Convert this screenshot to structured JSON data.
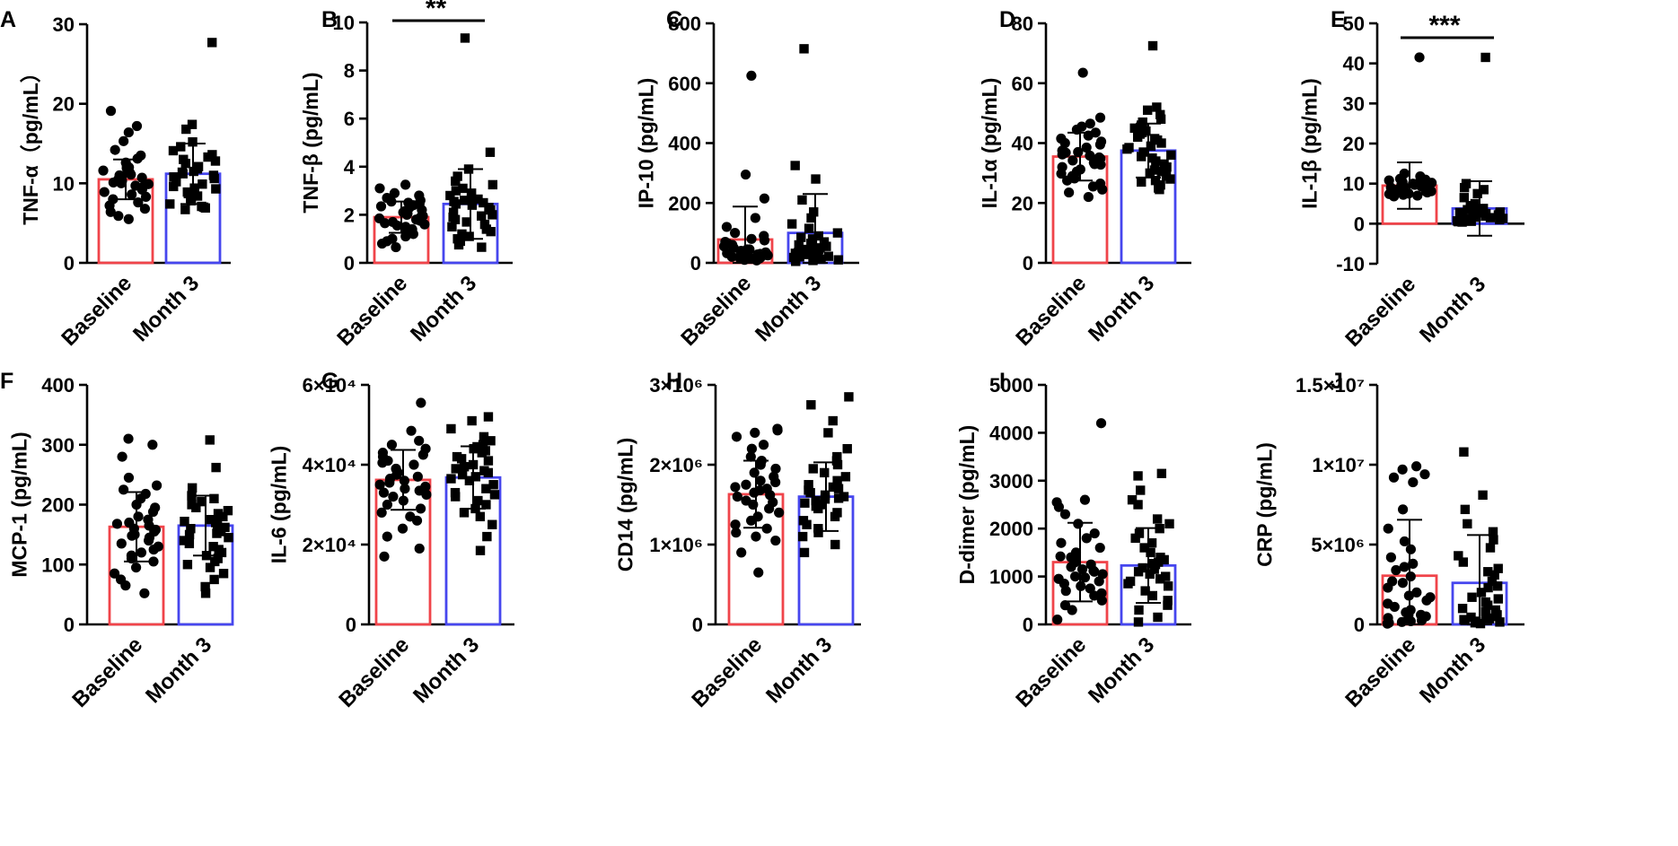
{
  "figure": {
    "colors": {
      "baseline": "#F0444A",
      "month3": "#4646EE",
      "ink": "#000000"
    }
  },
  "chart_data": [
    {
      "panel": "A",
      "type": "bar",
      "ylabel": "TNF-α（pg/mL）",
      "categories": [
        "Baseline",
        "Month 3"
      ],
      "ylim": [
        0,
        30
      ],
      "ticks": [
        0,
        10,
        20,
        30
      ],
      "tick_labels": [
        "0",
        "10",
        "20",
        "30"
      ],
      "means": [
        10.5,
        11.2
      ],
      "sd": [
        2.5,
        3.8
      ],
      "significance": null,
      "points": [
        [
          19.1,
          17.2,
          16.4,
          15.3,
          14.2,
          13.5,
          13.1,
          12.6,
          12.2,
          11.9,
          11.6,
          11.3,
          11.1,
          10.9,
          10.7,
          10.5,
          10.3,
          10.1,
          9.9,
          9.7,
          9.5,
          9.2,
          8.9,
          8.6,
          8.3,
          8.0,
          7.6,
          7.2,
          6.8,
          6.4,
          5.9,
          5.5,
          11.0,
          10.0,
          12.0
        ],
        [
          27.7,
          17.4,
          16.8,
          15.2,
          14.1,
          13.6,
          13.0,
          12.5,
          12.1,
          11.8,
          11.5,
          11.2,
          11.0,
          10.6,
          10.2,
          9.9,
          9.6,
          9.3,
          9.0,
          8.7,
          8.4,
          8.1,
          7.8,
          7.4,
          7.0,
          6.7,
          14.6,
          13.3,
          12.8,
          11.4,
          10.8,
          9.4,
          8.9,
          7.1,
          6.9
        ]
      ]
    },
    {
      "panel": "B",
      "type": "bar",
      "ylabel": "TNF-β (pg/mL)",
      "categories": [
        "Baseline",
        "Month 3"
      ],
      "ylim": [
        0,
        10
      ],
      "ticks": [
        0,
        2,
        4,
        6,
        8,
        10
      ],
      "tick_labels": [
        "0",
        "2",
        "4",
        "6",
        "8",
        "10"
      ],
      "means": [
        1.9,
        2.45
      ],
      "sd": [
        0.65,
        1.45
      ],
      "significance": "**",
      "points": [
        [
          3.25,
          3.1,
          2.9,
          2.8,
          2.7,
          2.6,
          2.5,
          2.4,
          2.35,
          2.3,
          2.2,
          2.15,
          2.1,
          2.05,
          2.0,
          1.95,
          1.9,
          1.85,
          1.8,
          1.75,
          1.7,
          1.65,
          1.6,
          1.5,
          1.4,
          1.3,
          1.2,
          1.1,
          1.0,
          0.9,
          0.8,
          0.65,
          2.45,
          1.55,
          2.55
        ],
        [
          9.35,
          4.6,
          3.9,
          3.6,
          3.4,
          3.25,
          3.1,
          3.0,
          2.9,
          2.8,
          2.7,
          2.6,
          2.55,
          2.5,
          2.45,
          2.4,
          2.3,
          2.2,
          2.1,
          2.0,
          1.95,
          1.9,
          1.8,
          1.7,
          1.6,
          1.5,
          1.4,
          1.3,
          1.2,
          1.1,
          1.0,
          0.9,
          0.75,
          0.65,
          2.65
        ]
      ]
    },
    {
      "panel": "C",
      "type": "bar",
      "ylabel": "IP-10 (pg/mL)",
      "categories": [
        "Baseline",
        "Month 3"
      ],
      "ylim": [
        0,
        800
      ],
      "ticks": [
        0,
        200,
        400,
        600,
        800
      ],
      "tick_labels": [
        "0",
        "200",
        "400",
        "600",
        "800"
      ],
      "means": [
        78,
        100
      ],
      "sd": [
        110,
        130
      ],
      "significance": null,
      "points": [
        [
          625,
          295,
          215,
          150,
          120,
          100,
          90,
          80,
          75,
          70,
          65,
          60,
          55,
          50,
          45,
          42,
          40,
          38,
          35,
          32,
          30,
          28,
          25,
          22,
          20,
          18,
          15,
          12,
          10,
          8,
          60,
          45,
          30,
          20,
          15
        ],
        [
          715,
          325,
          280,
          210,
          170,
          150,
          130,
          115,
          100,
          90,
          85,
          80,
          70,
          65,
          60,
          55,
          50,
          45,
          42,
          40,
          38,
          35,
          32,
          30,
          28,
          25,
          22,
          20,
          18,
          15,
          12,
          10,
          8,
          5,
          45
        ]
      ]
    },
    {
      "panel": "D",
      "type": "bar",
      "ylabel": "IL-1α (pg/mL)",
      "categories": [
        "Baseline",
        "Month 3"
      ],
      "ylim": [
        0,
        80
      ],
      "ticks": [
        0,
        20,
        40,
        60,
        80
      ],
      "tick_labels": [
        "0",
        "20",
        "40",
        "60",
        "80"
      ],
      "means": [
        35.5,
        37.5
      ],
      "sd": [
        8,
        9
      ],
      "significance": null,
      "points": [
        [
          63.5,
          48.5,
          46.5,
          45.5,
          44.5,
          43.5,
          42.5,
          41.5,
          40.5,
          39.5,
          38.5,
          37.5,
          36.8,
          36.2,
          35.8,
          35.2,
          34.8,
          34.2,
          33.5,
          32.8,
          32.0,
          31.2,
          30.5,
          29.8,
          29.0,
          28.2,
          27.5,
          26.5,
          25.5,
          24.5,
          23.5,
          22.0,
          37.0,
          40.0,
          33.0
        ],
        [
          72.5,
          52.0,
          51.0,
          49.5,
          48.0,
          47.0,
          46.0,
          45.0,
          44.0,
          43.0,
          42.0,
          41.0,
          40.0,
          39.0,
          38.0,
          37.0,
          36.0,
          35.0,
          34.0,
          33.0,
          32.0,
          31.0,
          30.0,
          29.0,
          28.0,
          27.0,
          26.0,
          25.0,
          24.5,
          38.5,
          41.5,
          35.5,
          43.5,
          30.5,
          27.5
        ]
      ]
    },
    {
      "panel": "E",
      "type": "bar",
      "ylabel": "IL-1β (pg/mL)",
      "categories": [
        "Baseline",
        "Month 3"
      ],
      "ylim": [
        -10,
        50
      ],
      "ticks": [
        -10,
        0,
        10,
        20,
        30,
        40,
        50
      ],
      "tick_labels": [
        "-10",
        "0",
        "10",
        "20",
        "30",
        "40",
        "50"
      ],
      "means": [
        9.5,
        3.8
      ],
      "sd": [
        5.8,
        6.8
      ],
      "significance": "***",
      "points": [
        [
          41.5,
          12.5,
          11.8,
          11.2,
          10.8,
          10.5,
          10.2,
          10.0,
          9.8,
          9.6,
          9.4,
          9.2,
          9.0,
          8.8,
          8.6,
          8.4,
          8.2,
          8.0,
          7.8,
          7.6,
          7.4,
          7.2,
          7.0,
          6.8,
          9.9,
          9.3,
          8.7,
          10.4,
          11.0,
          8.1,
          9.7,
          8.9,
          10.6,
          7.5,
          9.1
        ],
        [
          41.5,
          10.0,
          9.0,
          8.5,
          7.5,
          6.5,
          5.0,
          4.5,
          4.0,
          3.5,
          3.0,
          2.8,
          2.5,
          2.3,
          2.0,
          1.8,
          1.5,
          1.3,
          1.0,
          0.8,
          0.5,
          3.2,
          2.2,
          1.6,
          0.9,
          2.7,
          1.2,
          0.6,
          3.8,
          2.9,
          1.9,
          0.7,
          1.4,
          2.4,
          0.4
        ]
      ]
    },
    {
      "panel": "F",
      "type": "bar",
      "ylabel": "MCP-1 (pg/mL)",
      "categories": [
        "Baseline",
        "Month 3"
      ],
      "ylim": [
        0,
        400
      ],
      "ticks": [
        0,
        100,
        200,
        300,
        400
      ],
      "tick_labels": [
        "0",
        "100",
        "200",
        "300",
        "400"
      ],
      "means": [
        163,
        165
      ],
      "sd": [
        58,
        50
      ],
      "significance": null,
      "points": [
        [
          310,
          300,
          280,
          245,
          232,
          225,
          218,
          210,
          200,
          195,
          188,
          180,
          175,
          170,
          165,
          160,
          155,
          150,
          145,
          140,
          135,
          130,
          125,
          120,
          115,
          110,
          105,
          95,
          85,
          75,
          65,
          52,
          168,
          158,
          148
        ],
        [
          308,
          262,
          228,
          215,
          210,
          205,
          200,
          195,
          190,
          185,
          180,
          175,
          170,
          165,
          160,
          155,
          150,
          145,
          140,
          135,
          130,
          125,
          120,
          115,
          110,
          105,
          100,
          95,
          85,
          75,
          63,
          52,
          172,
          162,
          152
        ]
      ]
    },
    {
      "panel": "G",
      "type": "bar",
      "ylabel": "IL-6 (pg/mL)",
      "categories": [
        "Baseline",
        "Month 3"
      ],
      "ylim": [
        0,
        60000
      ],
      "ticks": [
        0,
        20000,
        40000,
        60000
      ],
      "tick_labels": [
        "0",
        "2×10⁴",
        "4×10⁴",
        "6×10⁴"
      ],
      "means": [
        36200,
        36800
      ],
      "sd": [
        7500,
        7800
      ],
      "significance": null,
      "points": [
        [
          55500,
          48500,
          46000,
          45000,
          44000,
          43000,
          42500,
          42000,
          41000,
          40000,
          39000,
          38000,
          37000,
          36500,
          36000,
          35500,
          35000,
          34000,
          33500,
          33000,
          32500,
          32000,
          31000,
          30000,
          29000,
          28000,
          27000,
          26000,
          24000,
          22000,
          19000,
          17000,
          37500,
          34500,
          40500
        ],
        [
          52000,
          51000,
          49000,
          47000,
          46000,
          45000,
          44500,
          44000,
          43500,
          43000,
          42000,
          41000,
          40000,
          39500,
          39000,
          38500,
          38000,
          37500,
          37000,
          36000,
          35000,
          34000,
          33000,
          32500,
          32000,
          31000,
          30000,
          29000,
          28000,
          27000,
          25000,
          22000,
          18500,
          36500,
          41500
        ]
      ]
    },
    {
      "panel": "H",
      "type": "bar",
      "ylabel": "CD14 (pg/mL)",
      "categories": [
        "Baseline",
        "Month 3"
      ],
      "ylim": [
        0,
        3000000
      ],
      "ticks": [
        0,
        1000000,
        2000000,
        3000000
      ],
      "tick_labels": [
        "0",
        "1×10⁶",
        "2×10⁶",
        "3×10⁶"
      ],
      "means": [
        1630000,
        1600000
      ],
      "sd": [
        420000,
        430000
      ],
      "significance": null,
      "points": [
        [
          2450000,
          2430000,
          2400000,
          2350000,
          2250000,
          2200000,
          2100000,
          2050000,
          2000000,
          1950000,
          1900000,
          1850000,
          1800000,
          1780000,
          1750000,
          1700000,
          1680000,
          1650000,
          1620000,
          1600000,
          1550000,
          1500000,
          1450000,
          1400000,
          1350000,
          1300000,
          1250000,
          1200000,
          1150000,
          1100000,
          1050000,
          900000,
          650000,
          1720000,
          1530000
        ],
        [
          2850000,
          2750000,
          2550000,
          2400000,
          2200000,
          2100000,
          2050000,
          2000000,
          1950000,
          1900000,
          1850000,
          1800000,
          1750000,
          1720000,
          1700000,
          1650000,
          1620000,
          1600000,
          1580000,
          1550000,
          1520000,
          1500000,
          1450000,
          1400000,
          1350000,
          1300000,
          1250000,
          1200000,
          1150000,
          1100000,
          1000000,
          900000,
          1680000,
          1570000,
          1480000
        ]
      ]
    },
    {
      "panel": "I",
      "type": "bar",
      "ylabel": "D-dimer (pg/mL)",
      "categories": [
        "Baseline",
        "Month 3"
      ],
      "ylim": [
        0,
        5000
      ],
      "ticks": [
        0,
        1000,
        2000,
        3000,
        4000,
        5000
      ],
      "tick_labels": [
        "0",
        "1000",
        "2000",
        "3000",
        "4000",
        "5000"
      ],
      "means": [
        1300,
        1230
      ],
      "sd": [
        820,
        780
      ],
      "significance": null,
      "points": [
        [
          4200,
          2600,
          2550,
          2450,
          2300,
          2100,
          1900,
          1800,
          1700,
          1600,
          1500,
          1400,
          1350,
          1300,
          1250,
          1200,
          1150,
          1100,
          1050,
          1000,
          950,
          900,
          850,
          800,
          750,
          700,
          650,
          600,
          500,
          400,
          300,
          100,
          1120,
          980,
          1420
        ],
        [
          3150,
          3100,
          2800,
          2600,
          2500,
          2200,
          2100,
          2000,
          1900,
          1800,
          1700,
          1600,
          1500,
          1400,
          1350,
          1300,
          1250,
          1200,
          1150,
          1100,
          1050,
          1000,
          950,
          900,
          850,
          800,
          700,
          600,
          500,
          400,
          300,
          150,
          50,
          1180,
          1270
        ]
      ]
    },
    {
      "panel": "J",
      "type": "bar",
      "ylabel": "CRP (pg/mL)",
      "categories": [
        "Baseline",
        "Month 3"
      ],
      "ylim": [
        0,
        15000000
      ],
      "ticks": [
        0,
        5000000,
        10000000,
        15000000
      ],
      "tick_labels": [
        "0",
        "5×10⁶",
        "1×10⁷",
        "1.5×10⁷"
      ],
      "means": [
        3050000,
        2600000
      ],
      "sd": [
        3500000,
        3000000
      ],
      "significance": null,
      "points": [
        [
          9900000,
          9700000,
          9400000,
          9200000,
          8900000,
          7200000,
          6000000,
          5200000,
          4700000,
          4200000,
          3800000,
          3400000,
          3000000,
          2600000,
          2300000,
          2000000,
          1700000,
          1500000,
          1300000,
          1100000,
          900000,
          750000,
          600000,
          500000,
          400000,
          300000,
          250000,
          200000,
          150000,
          100000,
          50000,
          1800000,
          2700000,
          3600000,
          600000
        ],
        [
          10800000,
          8100000,
          7200000,
          6300000,
          5800000,
          5300000,
          4800000,
          4300000,
          3900000,
          3500000,
          3100000,
          2700000,
          2300000,
          2000000,
          1700000,
          1400000,
          1200000,
          1000000,
          800000,
          600000,
          500000,
          400000,
          300000,
          250000,
          200000,
          150000,
          100000,
          50000,
          2400000,
          1600000,
          900000,
          3300000,
          700000,
          450000,
          350000
        ]
      ]
    }
  ]
}
